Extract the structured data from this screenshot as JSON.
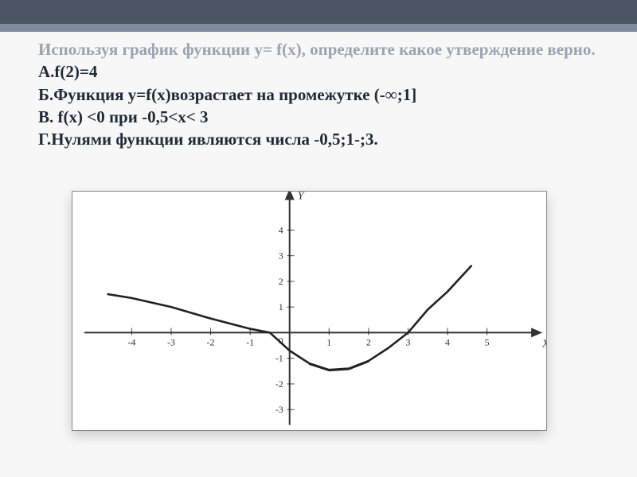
{
  "question": {
    "intro_muted": "Используя график функции y= f(x), определите какое утверждение верно. ",
    "a_label": "А.f(2)=4",
    "b_line": " Б.Функция y=f(x)возрастает на промежутке (-∞;1]",
    "c_line": "В. f(x) <0 при -0,5<x< 3",
    "d_line": " Г.Нулями функции являются числа -0,5;1-;3."
  },
  "chart": {
    "type": "line",
    "background_color": "#ffffff",
    "axis_color": "#333333",
    "axis_width": 2,
    "curve_color": "#222222",
    "curve_width": 2.6,
    "dash_color": "#555555",
    "label_color": "#333333",
    "label_fontsize": 12,
    "xlim": [
      -5.5,
      6.5
    ],
    "ylim": [
      -3.8,
      5.5
    ],
    "xticks": [
      -4,
      -3,
      -2,
      -1,
      0,
      1,
      2,
      3,
      4,
      5
    ],
    "yticks": [
      -3,
      -2,
      -1,
      1,
      2,
      3,
      4
    ],
    "x_axis_label": "X",
    "y_axis_label": "Y",
    "origin_label": "0",
    "zeros_x": [
      -0.5,
      3
    ],
    "curve_points": [
      [
        -4.6,
        1.5
      ],
      [
        -4.0,
        1.35
      ],
      [
        -3.0,
        1.0
      ],
      [
        -2.0,
        0.55
      ],
      [
        -1.0,
        0.15
      ],
      [
        -0.5,
        0.0
      ],
      [
        0.0,
        -0.7
      ],
      [
        0.5,
        -1.2
      ],
      [
        1.0,
        -1.45
      ],
      [
        1.5,
        -1.4
      ],
      [
        2.0,
        -1.1
      ],
      [
        2.5,
        -0.6
      ],
      [
        3.0,
        0.0
      ],
      [
        3.5,
        0.9
      ],
      [
        4.0,
        1.6
      ],
      [
        4.6,
        2.6
      ]
    ]
  }
}
